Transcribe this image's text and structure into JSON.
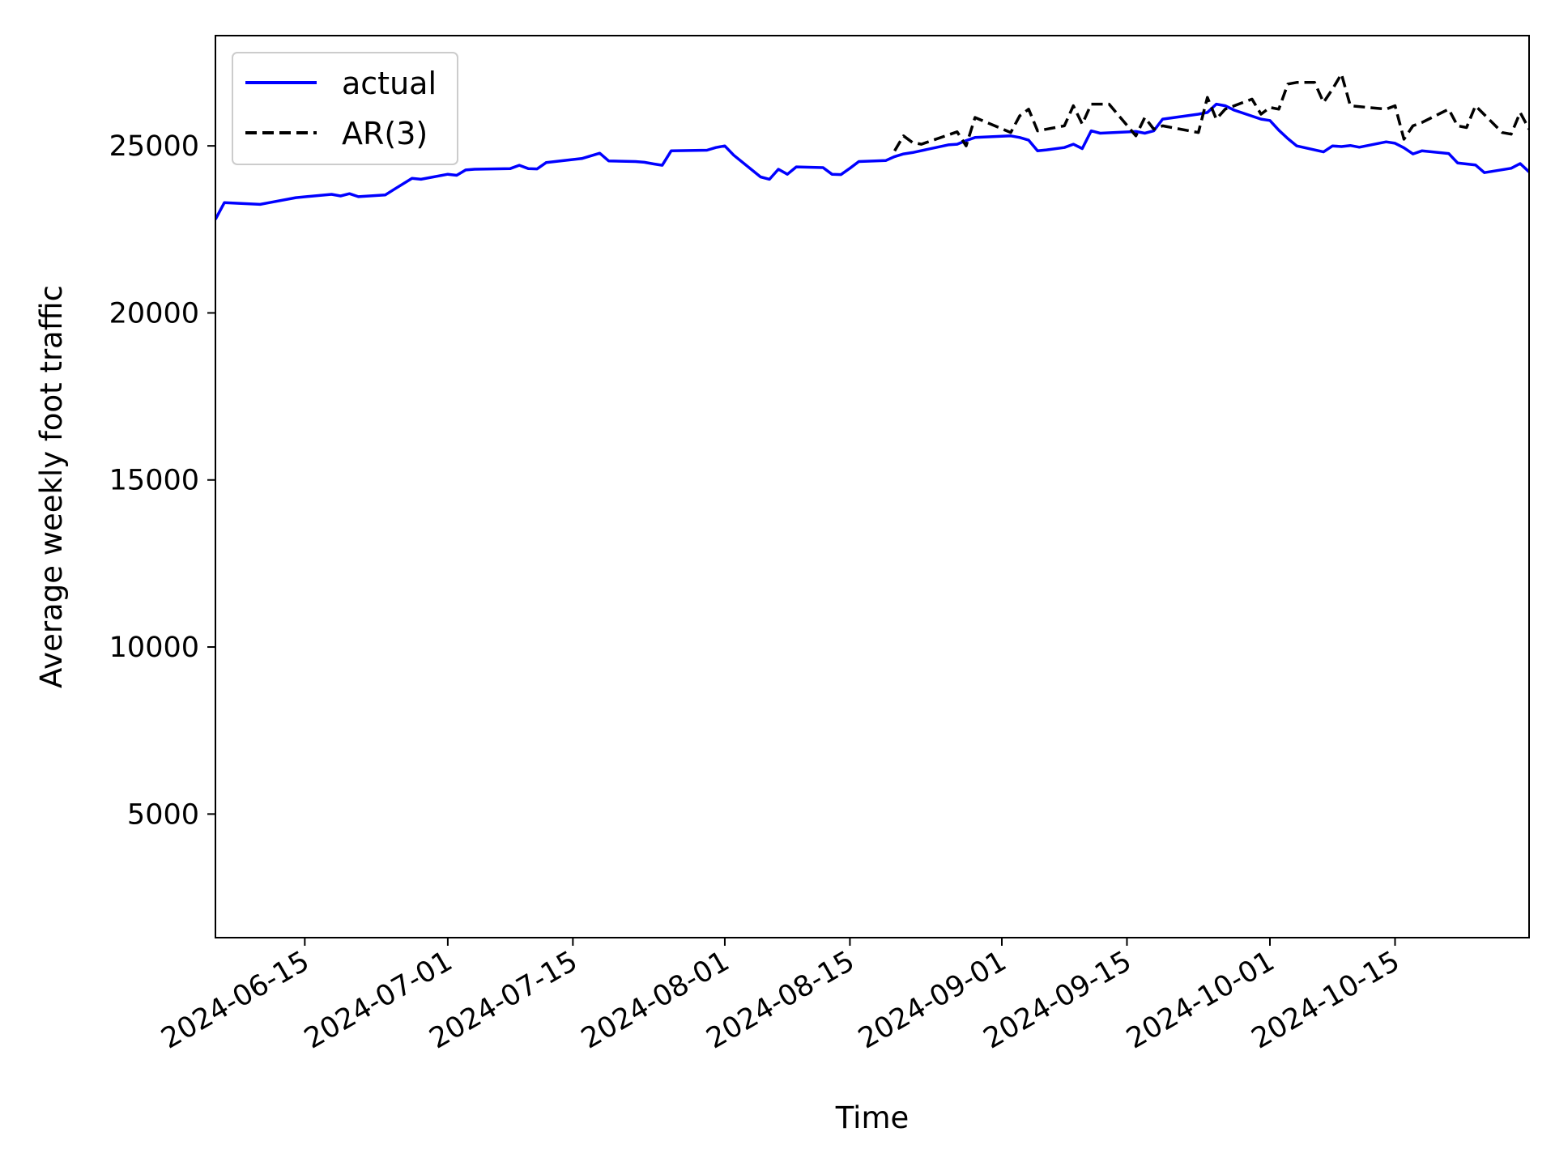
{
  "chart_data": {
    "type": "line",
    "title": "",
    "xlabel": "Time",
    "ylabel": "Average weekly foot traffic",
    "x_type": "date",
    "xlim": [
      "2024-06-05",
      "2024-10-30"
    ],
    "ylim": [
      1300,
      28300
    ],
    "x_ticks": [
      "2024-06-15",
      "2024-07-01",
      "2024-07-15",
      "2024-08-01",
      "2024-08-15",
      "2024-09-01",
      "2024-09-15",
      "2024-10-01",
      "2024-10-15"
    ],
    "y_ticks": [
      5000,
      10000,
      15000,
      20000,
      25000
    ],
    "grid": false,
    "legend": {
      "position": "top-left"
    },
    "series": [
      {
        "name": "actual",
        "color": "#0000ff",
        "style": "solid",
        "points": [
          [
            "2024-06-05",
            22800
          ],
          [
            "2024-06-06",
            23300
          ],
          [
            "2024-06-10",
            23250
          ],
          [
            "2024-06-11",
            23300
          ],
          [
            "2024-06-14",
            23450
          ],
          [
            "2024-06-18",
            23550
          ],
          [
            "2024-06-19",
            23500
          ],
          [
            "2024-06-20",
            23570
          ],
          [
            "2024-06-21",
            23480
          ],
          [
            "2024-06-24",
            23530
          ],
          [
            "2024-06-25",
            23700
          ],
          [
            "2024-06-27",
            24030
          ],
          [
            "2024-06-28",
            24000
          ],
          [
            "2024-07-01",
            24150
          ],
          [
            "2024-07-02",
            24120
          ],
          [
            "2024-07-03",
            24280
          ],
          [
            "2024-07-04",
            24300
          ],
          [
            "2024-07-08",
            24320
          ],
          [
            "2024-07-09",
            24420
          ],
          [
            "2024-07-10",
            24320
          ],
          [
            "2024-07-11",
            24310
          ],
          [
            "2024-07-12",
            24500
          ],
          [
            "2024-07-16",
            24620
          ],
          [
            "2024-07-18",
            24780
          ],
          [
            "2024-07-19",
            24550
          ],
          [
            "2024-07-22",
            24530
          ],
          [
            "2024-07-23",
            24510
          ],
          [
            "2024-07-24",
            24460
          ],
          [
            "2024-07-25",
            24420
          ],
          [
            "2024-07-26",
            24850
          ],
          [
            "2024-07-30",
            24870
          ],
          [
            "2024-07-31",
            24950
          ],
          [
            "2024-08-01",
            25000
          ],
          [
            "2024-08-02",
            24720
          ],
          [
            "2024-08-05",
            24070
          ],
          [
            "2024-08-06",
            24000
          ],
          [
            "2024-08-07",
            24300
          ],
          [
            "2024-08-08",
            24150
          ],
          [
            "2024-08-09",
            24370
          ],
          [
            "2024-08-12",
            24350
          ],
          [
            "2024-08-13",
            24150
          ],
          [
            "2024-08-14",
            24140
          ],
          [
            "2024-08-15",
            24330
          ],
          [
            "2024-08-16",
            24530
          ],
          [
            "2024-08-19",
            24560
          ],
          [
            "2024-08-20",
            24680
          ],
          [
            "2024-08-21",
            24760
          ],
          [
            "2024-08-22",
            24800
          ],
          [
            "2024-08-26",
            25030
          ],
          [
            "2024-08-27",
            25050
          ],
          [
            "2024-08-28",
            25160
          ],
          [
            "2024-08-29",
            25250
          ],
          [
            "2024-09-02",
            25300
          ],
          [
            "2024-09-03",
            25250
          ],
          [
            "2024-09-04",
            25170
          ],
          [
            "2024-09-05",
            24850
          ],
          [
            "2024-09-06",
            24880
          ],
          [
            "2024-09-08",
            24950
          ],
          [
            "2024-09-09",
            25050
          ],
          [
            "2024-09-10",
            24920
          ],
          [
            "2024-09-11",
            25450
          ],
          [
            "2024-09-12",
            25380
          ],
          [
            "2024-09-16",
            25430
          ],
          [
            "2024-09-17",
            25380
          ],
          [
            "2024-09-18",
            25450
          ],
          [
            "2024-09-19",
            25800
          ],
          [
            "2024-09-23",
            25950
          ],
          [
            "2024-09-24",
            26000
          ],
          [
            "2024-09-25",
            26250
          ],
          [
            "2024-09-26",
            26200
          ],
          [
            "2024-09-27",
            26070
          ],
          [
            "2024-09-30",
            25800
          ],
          [
            "2024-10-01",
            25760
          ],
          [
            "2024-10-02",
            25470
          ],
          [
            "2024-10-03",
            25220
          ],
          [
            "2024-10-04",
            25000
          ],
          [
            "2024-10-07",
            24820
          ],
          [
            "2024-10-08",
            25000
          ],
          [
            "2024-10-09",
            24980
          ],
          [
            "2024-10-10",
            25010
          ],
          [
            "2024-10-11",
            24960
          ],
          [
            "2024-10-14",
            25120
          ],
          [
            "2024-10-15",
            25080
          ],
          [
            "2024-10-16",
            24940
          ],
          [
            "2024-10-17",
            24760
          ],
          [
            "2024-10-18",
            24850
          ],
          [
            "2024-10-21",
            24770
          ],
          [
            "2024-10-22",
            24490
          ],
          [
            "2024-10-24",
            24430
          ],
          [
            "2024-10-25",
            24200
          ],
          [
            "2024-10-28",
            24330
          ],
          [
            "2024-10-29",
            24470
          ],
          [
            "2024-10-30",
            24220
          ]
        ]
      },
      {
        "name": "AR(3)",
        "color": "#000000",
        "style": "dashed",
        "points": [
          [
            "2024-08-20",
            24850
          ],
          [
            "2024-08-21",
            25300
          ],
          [
            "2024-08-22",
            25100
          ],
          [
            "2024-08-23",
            25050
          ],
          [
            "2024-08-27",
            25420
          ],
          [
            "2024-08-28",
            25000
          ],
          [
            "2024-08-29",
            25850
          ],
          [
            "2024-09-02",
            25400
          ],
          [
            "2024-09-03",
            25900
          ],
          [
            "2024-09-04",
            26100
          ],
          [
            "2024-09-05",
            25450
          ],
          [
            "2024-09-08",
            25600
          ],
          [
            "2024-09-09",
            26200
          ],
          [
            "2024-09-10",
            25650
          ],
          [
            "2024-09-11",
            26250
          ],
          [
            "2024-09-13",
            26250
          ],
          [
            "2024-09-16",
            25300
          ],
          [
            "2024-09-17",
            25850
          ],
          [
            "2024-09-18",
            25500
          ],
          [
            "2024-09-19",
            25600
          ],
          [
            "2024-09-23",
            25400
          ],
          [
            "2024-09-24",
            26450
          ],
          [
            "2024-09-25",
            25800
          ],
          [
            "2024-09-26",
            26100
          ],
          [
            "2024-09-29",
            26400
          ],
          [
            "2024-09-30",
            25950
          ],
          [
            "2024-10-01",
            26150
          ],
          [
            "2024-10-02",
            26100
          ],
          [
            "2024-10-03",
            26850
          ],
          [
            "2024-10-04",
            26900
          ],
          [
            "2024-10-06",
            26900
          ],
          [
            "2024-10-07",
            26300
          ],
          [
            "2024-10-08",
            26700
          ],
          [
            "2024-10-09",
            27150
          ],
          [
            "2024-10-10",
            26200
          ],
          [
            "2024-10-14",
            26100
          ],
          [
            "2024-10-15",
            26200
          ],
          [
            "2024-10-16",
            25200
          ],
          [
            "2024-10-17",
            25600
          ],
          [
            "2024-10-18",
            25700
          ],
          [
            "2024-10-21",
            26100
          ],
          [
            "2024-10-22",
            25600
          ],
          [
            "2024-10-23",
            25550
          ],
          [
            "2024-10-24",
            26200
          ],
          [
            "2024-10-27",
            25400
          ],
          [
            "2024-10-28",
            25350
          ],
          [
            "2024-10-29",
            26000
          ],
          [
            "2024-10-30",
            25500
          ]
        ]
      }
    ]
  }
}
